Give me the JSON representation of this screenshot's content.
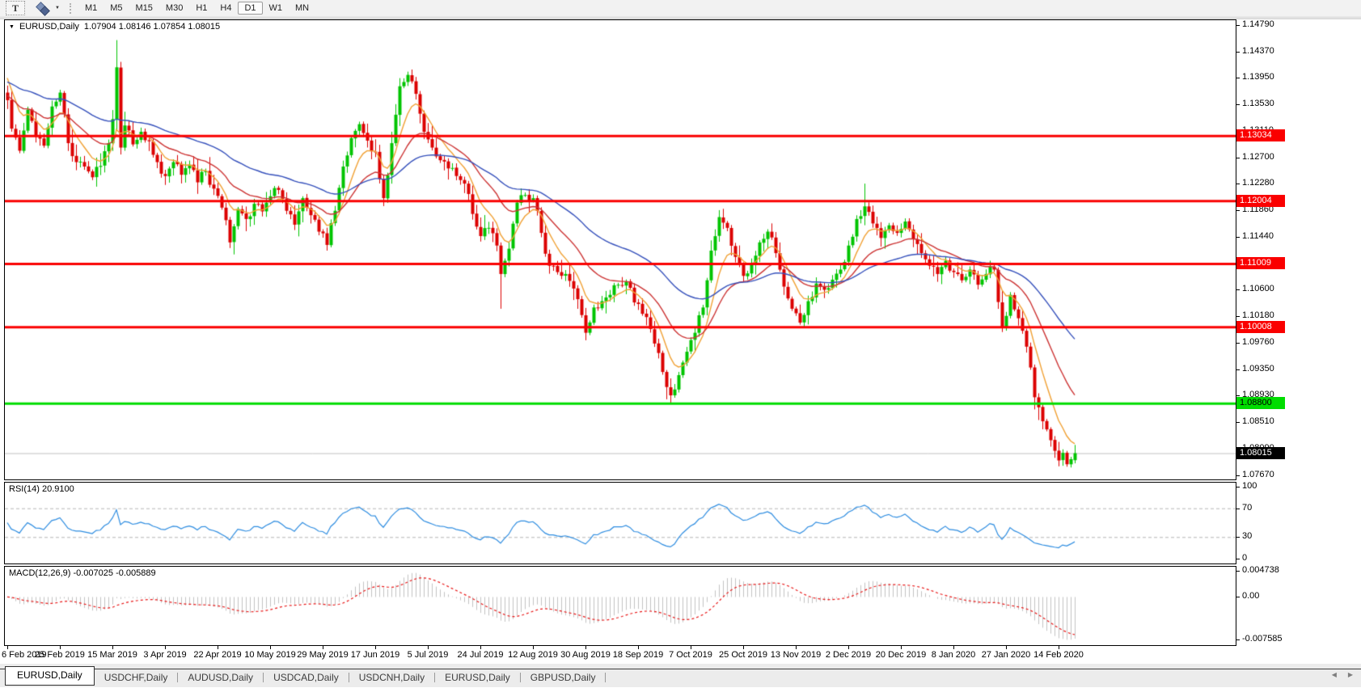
{
  "toolbar": {
    "text_tool_label": "T",
    "timeframes": [
      "M1",
      "M5",
      "M15",
      "M30",
      "H1",
      "H4",
      "D1",
      "W1",
      "MN"
    ],
    "active_timeframe": "D1"
  },
  "icons": {
    "title_marker": "▼",
    "caret_down": "▼",
    "tab_scroll_left": "◀",
    "tab_scroll_right": "▶"
  },
  "header": {
    "symbol_period": "EURUSD,Daily",
    "ohlc": "1.07904 1.08146 1.07854 1.08015"
  },
  "panes": {
    "rsi_label": "RSI(14) 20.9100",
    "macd_label": "MACD(12,26,9) -0.007025 -0.005889"
  },
  "colors": {
    "bull": "#00c400",
    "bear": "#dc0000",
    "ma_fast": "#f0a033",
    "ma_mid": "#cc3333",
    "ma_slow": "#3550bb",
    "rsi": "#2d8ce0",
    "macd_hist": "#c2c2c2",
    "macd_signal": "#e81717",
    "level_red": "#fa0000",
    "level_green": "#00dd00",
    "current_line": "#c0c0c0"
  },
  "tabs": {
    "items": [
      "EURUSD,Daily",
      "USDCHF,Daily",
      "AUDUSD,Daily",
      "USDCAD,Daily",
      "USDCNH,Daily",
      "EURUSD,Daily",
      "GBPUSD,Daily"
    ],
    "active_index": 0
  },
  "chart_data": {
    "type": "candlestick",
    "symbol": "EURUSD",
    "period": "Daily",
    "open": 1.07904,
    "high": 1.08146,
    "low": 1.07854,
    "close": 1.08015,
    "bars": 265,
    "seed": 7,
    "price_axis": {
      "max": 1.14865,
      "min": 1.076,
      "ticks": [
        "1.14790",
        "1.14370",
        "1.13950",
        "1.13530",
        "1.13110",
        "1.12700",
        "1.12280",
        "1.11860",
        "1.11440",
        "1.11020",
        "1.10600",
        "1.10180",
        "1.09760",
        "1.09350",
        "1.08930",
        "1.08510",
        "1.08090",
        "1.07670"
      ]
    },
    "levels": [
      {
        "label": "1.13034",
        "value": 1.13034,
        "kind": "resistance"
      },
      {
        "label": "1.12004",
        "value": 1.12004,
        "kind": "resistance"
      },
      {
        "label": "1.11009",
        "value": 1.11009,
        "kind": "resistance"
      },
      {
        "label": "1.10008",
        "value": 1.10008,
        "kind": "resistance"
      },
      {
        "label": "1.08800",
        "value": 1.088,
        "kind": "support"
      }
    ],
    "current": {
      "label": "1.08015",
      "value": 1.08015
    },
    "anchors": [
      [
        0,
        1.136
      ],
      [
        1,
        1.1315
      ],
      [
        3,
        1.128
      ],
      [
        5,
        1.1345
      ],
      [
        7,
        1.1302
      ],
      [
        9,
        1.1288
      ],
      [
        11,
        1.135
      ],
      [
        13,
        1.1372
      ],
      [
        15,
        1.1292
      ],
      [
        17,
        1.1262
      ],
      [
        19,
        1.1255
      ],
      [
        21,
        1.1238
      ],
      [
        23,
        1.1256
      ],
      [
        25,
        1.1292
      ],
      [
        26,
        1.133
      ],
      [
        27,
        1.1412
      ],
      [
        28,
        1.1285
      ],
      [
        29,
        1.132
      ],
      [
        31,
        1.129
      ],
      [
        33,
        1.131
      ],
      [
        35,
        1.1295
      ],
      [
        37,
        1.1262
      ],
      [
        39,
        1.124
      ],
      [
        41,
        1.1262
      ],
      [
        43,
        1.1242
      ],
      [
        45,
        1.1258
      ],
      [
        47,
        1.123
      ],
      [
        49,
        1.1248
      ],
      [
        51,
        1.122
      ],
      [
        53,
        1.119
      ],
      [
        55,
        1.1135
      ],
      [
        57,
        1.1188
      ],
      [
        59,
        1.1172
      ],
      [
        61,
        1.1196
      ],
      [
        63,
        1.1184
      ],
      [
        65,
        1.1208
      ],
      [
        67,
        1.1218
      ],
      [
        69,
        1.1185
      ],
      [
        71,
        1.1163
      ],
      [
        73,
        1.1205
      ],
      [
        75,
        1.1178
      ],
      [
        77,
        1.1152
      ],
      [
        79,
        1.1131
      ],
      [
        81,
        1.1185
      ],
      [
        83,
        1.1255
      ],
      [
        85,
        1.13
      ],
      [
        87,
        1.1322
      ],
      [
        89,
        1.1296
      ],
      [
        91,
        1.1278
      ],
      [
        93,
        1.1205
      ],
      [
        95,
        1.1292
      ],
      [
        97,
        1.1382
      ],
      [
        99,
        1.14
      ],
      [
        101,
        1.137
      ],
      [
        103,
        1.131
      ],
      [
        105,
        1.1285
      ],
      [
        107,
        1.1265
      ],
      [
        109,
        1.1252
      ],
      [
        111,
        1.124
      ],
      [
        113,
        1.1228
      ],
      [
        115,
        1.118
      ],
      [
        117,
        1.1145
      ],
      [
        119,
        1.1158
      ],
      [
        121,
        1.113
      ],
      [
        122,
        1.1085
      ],
      [
        124,
        1.1125
      ],
      [
        126,
        1.1198
      ],
      [
        128,
        1.121
      ],
      [
        130,
        1.1205
      ],
      [
        132,
        1.115
      ],
      [
        134,
        1.1098
      ],
      [
        136,
        1.1088
      ],
      [
        138,
        1.1085
      ],
      [
        140,
        1.1062
      ],
      [
        142,
        1.102
      ],
      [
        143,
        1.0992
      ],
      [
        145,
        1.1032
      ],
      [
        147,
        1.1042
      ],
      [
        149,
        1.1052
      ],
      [
        151,
        1.1068
      ],
      [
        153,
        1.1073
      ],
      [
        155,
        1.104
      ],
      [
        157,
        1.1022
      ],
      [
        159,
        1.0998
      ],
      [
        160,
        1.0975
      ],
      [
        162,
        1.093
      ],
      [
        164,
        1.0893
      ],
      [
        166,
        1.0925
      ],
      [
        168,
        1.0962
      ],
      [
        170,
        1.0992
      ],
      [
        172,
        1.1032
      ],
      [
        174,
        1.1122
      ],
      [
        176,
        1.1175
      ],
      [
        178,
        1.1158
      ],
      [
        180,
        1.1112
      ],
      [
        182,
        1.1082
      ],
      [
        184,
        1.11
      ],
      [
        186,
        1.1135
      ],
      [
        188,
        1.1152
      ],
      [
        190,
        1.1118
      ],
      [
        192,
        1.1065
      ],
      [
        194,
        1.103
      ],
      [
        196,
        1.1008
      ],
      [
        198,
        1.1042
      ],
      [
        200,
        1.107
      ],
      [
        202,
        1.106
      ],
      [
        204,
        1.1076
      ],
      [
        206,
        1.1092
      ],
      [
        208,
        1.113
      ],
      [
        210,
        1.1172
      ],
      [
        212,
        1.1192
      ],
      [
        214,
        1.1165
      ],
      [
        216,
        1.1142
      ],
      [
        218,
        1.1162
      ],
      [
        220,
        1.115
      ],
      [
        222,
        1.1168
      ],
      [
        224,
        1.114
      ],
      [
        226,
        1.1118
      ],
      [
        228,
        1.1098
      ],
      [
        230,
        1.1085
      ],
      [
        232,
        1.1106
      ],
      [
        234,
        1.1088
      ],
      [
        236,
        1.1075
      ],
      [
        238,
        1.1092
      ],
      [
        240,
        1.1068
      ],
      [
        242,
        1.1085
      ],
      [
        244,
        1.1092
      ],
      [
        246,
        1.1
      ],
      [
        248,
        1.1052
      ],
      [
        250,
        1.1015
      ],
      [
        252,
        1.097
      ],
      [
        254,
        1.089
      ],
      [
        256,
        1.0852
      ],
      [
        258,
        1.0822
      ],
      [
        260,
        1.079
      ],
      [
        261,
        1.0802
      ],
      [
        262,
        1.0784
      ],
      [
        263,
        1.0792
      ],
      [
        264,
        1.08015
      ]
    ],
    "spikes": [
      [
        27,
        1.1455
      ],
      [
        212,
        1.1228
      ]
    ],
    "dips": [
      [
        122,
        1.103
      ],
      [
        164,
        1.0879
      ]
    ],
    "moving_averages": [
      {
        "period": 8,
        "color_key": "ma_fast",
        "seed": 1.1405
      },
      {
        "period": 21,
        "color_key": "ma_mid",
        "seed": 1.1368
      },
      {
        "period": 50,
        "color_key": "ma_slow",
        "seed": 1.139
      }
    ],
    "rsi": {
      "period": 14,
      "levels": [
        70,
        30
      ],
      "ticks": [
        [
          "100",
          100
        ],
        [
          "70",
          70
        ],
        [
          "30",
          30
        ],
        [
          "0",
          0
        ]
      ],
      "last": 20.91
    },
    "macd": {
      "fast": 12,
      "slow": 26,
      "signal": 9,
      "range_max": 0.0054,
      "range_min": -0.0086,
      "ticks": [
        [
          "0.004738",
          0.004738
        ],
        [
          "0.00",
          0
        ],
        [
          "-0.007585",
          -0.007585
        ]
      ],
      "last": -0.007025,
      "last_signal": -0.005889
    },
    "dates": [
      "6 Feb 2019",
      "25 Feb 2019",
      "15 Mar 2019",
      "3 Apr 2019",
      "22 Apr 2019",
      "10 May 2019",
      "29 May 2019",
      "17 Jun 2019",
      "5 Jul 2019",
      "24 Jul 2019",
      "12 Aug 2019",
      "30 Aug 2019",
      "18 Sep 2019",
      "7 Oct 2019",
      "25 Oct 2019",
      "13 Nov 2019",
      "2 Dec 2019",
      "20 Dec 2019",
      "8 Jan 2020",
      "27 Jan 2020",
      "14 Feb 2020"
    ]
  }
}
